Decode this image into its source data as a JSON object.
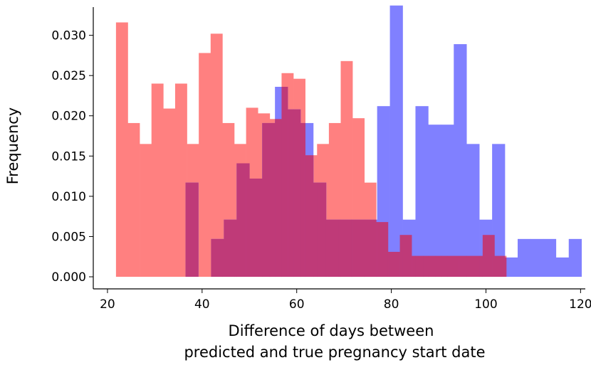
{
  "chart_data": {
    "type": "histogram",
    "title": "",
    "xlabel_lines": [
      "Difference of days between",
      "predicted and true pregnancy start date"
    ],
    "ylabel": "Frequency",
    "xlim": [
      17,
      121
    ],
    "ylim": [
      -0.0015,
      0.0335
    ],
    "x_ticks": [
      20,
      40,
      60,
      80,
      100,
      120
    ],
    "y_ticks": [
      0.0,
      0.005,
      0.01,
      0.015,
      0.02,
      0.025,
      0.03
    ],
    "y_tick_labels": [
      "0.000",
      "0.005",
      "0.010",
      "0.015",
      "0.020",
      "0.025",
      "0.030"
    ],
    "overlap_color": "#bf3a78",
    "series": [
      {
        "name": "red",
        "color": "#ff8080",
        "bins": [
          [
            21.8,
            24.3,
            0.0316
          ],
          [
            24.3,
            26.8,
            0.0191
          ],
          [
            26.8,
            29.3,
            0.0165
          ],
          [
            29.3,
            31.8,
            0.024
          ],
          [
            31.8,
            34.3,
            0.0209
          ],
          [
            34.3,
            36.8,
            0.024
          ],
          [
            36.8,
            39.3,
            0.0165
          ],
          [
            39.3,
            41.8,
            0.0278
          ],
          [
            41.8,
            44.3,
            0.0302
          ],
          [
            44.3,
            46.8,
            0.0191
          ],
          [
            46.8,
            49.3,
            0.0165
          ],
          [
            49.3,
            51.8,
            0.021
          ],
          [
            51.8,
            54.3,
            0.0203
          ],
          [
            54.3,
            56.8,
            0.0196
          ],
          [
            56.8,
            59.3,
            0.0253
          ],
          [
            59.3,
            61.8,
            0.0246
          ],
          [
            61.8,
            64.3,
            0.0151
          ],
          [
            64.3,
            66.8,
            0.0165
          ],
          [
            66.8,
            69.3,
            0.0191
          ],
          [
            69.3,
            71.8,
            0.0268
          ],
          [
            71.8,
            74.3,
            0.0197
          ],
          [
            74.3,
            76.8,
            0.0117
          ],
          [
            76.8,
            79.3,
            0.0068
          ],
          [
            79.3,
            81.8,
            0.0031
          ],
          [
            81.8,
            84.3,
            0.0052
          ],
          [
            84.3,
            86.8,
            0.0026
          ],
          [
            86.8,
            89.3,
            0.0026
          ],
          [
            89.3,
            91.8,
            0.0026
          ],
          [
            91.8,
            94.3,
            0.0026
          ],
          [
            94.3,
            96.8,
            0.0026
          ],
          [
            96.8,
            99.3,
            0.0026
          ],
          [
            99.3,
            101.8,
            0.0052
          ],
          [
            101.8,
            104.3,
            0.0026
          ]
        ]
      },
      {
        "name": "blue",
        "color": "#8080ff",
        "bins": [
          [
            36.5,
            39.2,
            0.0117
          ],
          [
            39.2,
            41.9,
            0.0
          ],
          [
            41.9,
            44.6,
            0.0047
          ],
          [
            44.6,
            47.3,
            0.0071
          ],
          [
            47.3,
            50.0,
            0.0141
          ],
          [
            50.0,
            52.7,
            0.0122
          ],
          [
            52.7,
            55.4,
            0.0191
          ],
          [
            55.4,
            58.1,
            0.0236
          ],
          [
            58.1,
            60.8,
            0.0208
          ],
          [
            60.8,
            63.5,
            0.0191
          ],
          [
            63.5,
            66.2,
            0.0117
          ],
          [
            66.2,
            68.9,
            0.0071
          ],
          [
            68.9,
            71.6,
            0.0071
          ],
          [
            71.6,
            74.3,
            0.0071
          ],
          [
            74.3,
            77.0,
            0.0071
          ],
          [
            77.0,
            79.7,
            0.0212
          ],
          [
            79.7,
            82.4,
            0.0337
          ],
          [
            82.4,
            85.1,
            0.0071
          ],
          [
            85.1,
            87.8,
            0.0212
          ],
          [
            87.8,
            90.5,
            0.0189
          ],
          [
            90.5,
            93.2,
            0.0189
          ],
          [
            93.2,
            95.9,
            0.0289
          ],
          [
            95.9,
            98.6,
            0.0165
          ],
          [
            98.6,
            101.3,
            0.0071
          ],
          [
            101.3,
            104.0,
            0.0165
          ],
          [
            104.0,
            106.7,
            0.0024
          ],
          [
            106.7,
            109.4,
            0.0047
          ],
          [
            109.4,
            112.1,
            0.0047
          ],
          [
            112.1,
            114.8,
            0.0047
          ],
          [
            114.8,
            117.5,
            0.0024
          ],
          [
            117.5,
            120.2,
            0.0047
          ]
        ]
      }
    ]
  }
}
